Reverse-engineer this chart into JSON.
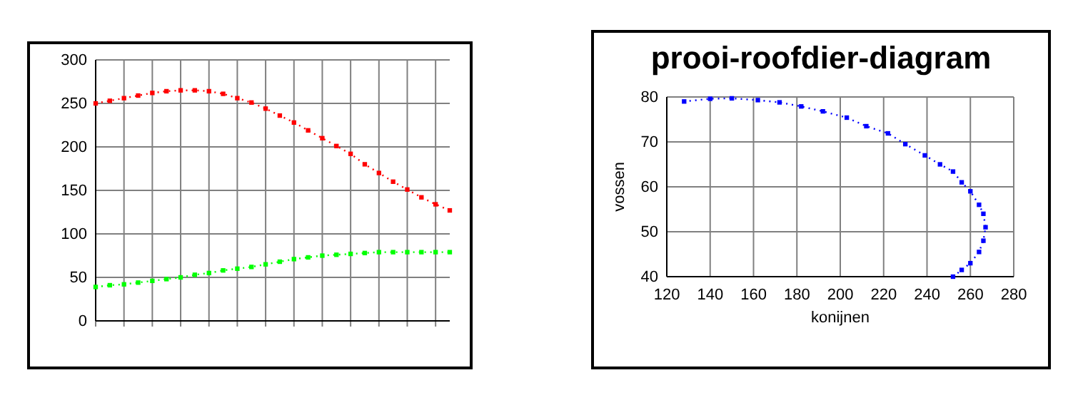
{
  "chart_data": [
    {
      "type": "line",
      "categories": [
        null,
        null,
        null,
        null,
        null,
        null,
        null,
        null,
        null,
        null,
        null,
        null,
        null,
        null,
        null,
        null,
        null,
        null,
        null,
        null,
        null,
        null,
        null,
        null,
        null,
        null
      ],
      "ylim": [
        0,
        300
      ],
      "yticks": [
        0,
        50,
        100,
        150,
        200,
        250,
        300
      ],
      "grid": true,
      "tick_labels": "y",
      "marker": "square",
      "line_style": "dotted",
      "series": [
        {
          "color": "#ff0000",
          "values": [
            250,
            253,
            256,
            259,
            262,
            264,
            265,
            265,
            264,
            261,
            256,
            251,
            244,
            236,
            228,
            219,
            210,
            201,
            192,
            180,
            170,
            160,
            151,
            142,
            134,
            127
          ]
        },
        {
          "color": "#00ff00",
          "values": [
            39,
            41,
            42,
            44,
            46,
            48,
            50,
            53,
            55,
            58,
            60,
            62,
            65,
            68,
            71,
            73,
            75,
            76,
            77,
            78,
            79,
            79,
            79,
            79,
            79,
            79
          ]
        }
      ]
    },
    {
      "type": "line",
      "title": "prooi-roofdier-diagram",
      "xlabel": "konijnen",
      "ylabel": "vossen",
      "xlim": [
        120,
        280
      ],
      "xticks": [
        120,
        140,
        160,
        180,
        200,
        220,
        240,
        260,
        280
      ],
      "ylim": [
        40,
        80
      ],
      "yticks": [
        40,
        50,
        60,
        70,
        80
      ],
      "grid": true,
      "marker": "square",
      "line_style": "dotted",
      "series": [
        {
          "color": "#0000ff",
          "x": [
            252,
            256,
            260,
            264,
            266,
            267,
            266,
            264,
            260,
            256,
            252,
            246,
            239,
            230,
            222,
            212,
            203,
            192,
            182,
            172,
            162,
            150,
            140,
            128
          ],
          "values": [
            40,
            41.5,
            43,
            45.5,
            48,
            51,
            54,
            56,
            59,
            61,
            63.4,
            65,
            67,
            69.5,
            71.9,
            73.5,
            75.4,
            76.8,
            77.9,
            78.8,
            79.3,
            79.7,
            79.6,
            79
          ]
        }
      ]
    }
  ]
}
